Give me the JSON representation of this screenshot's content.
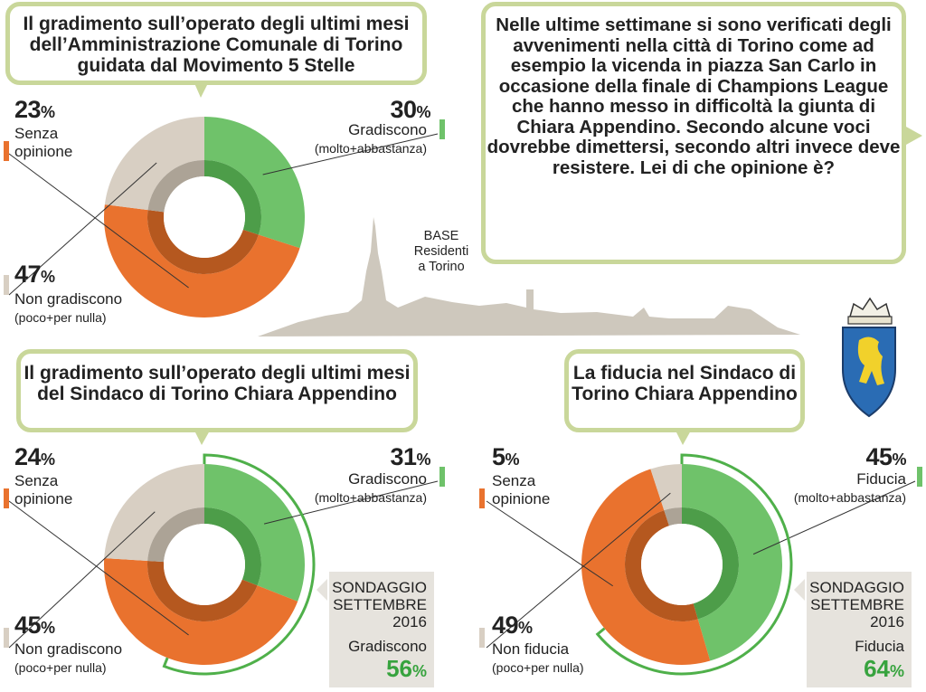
{
  "colors": {
    "green": "#6fc26a",
    "green_dark": "#4d9d49",
    "orange": "#e9722e",
    "orange_dark": "#b5581f",
    "beige": "#d8cfc3",
    "beige_dark": "#aca396",
    "frame": "#c9d79a",
    "accent_text": "#37a33e",
    "skyline": "#cec8bd"
  },
  "bubbles": {
    "administration": "Il gradimento sull’operato degli ultimi mesi dell’Amministrazione Comunale di Torino guidata dal Movimento 5 Stelle",
    "question": "Nelle ultime settimane si sono verificati degli avvenimenti nella città di Torino come ad esempio la vicenda in piazza San Carlo in occasione della finale di Champions League che hanno messo in difficoltà la giunta di Chiara Appendino. Secondo alcune voci dovrebbe dimettersi, secondo altri invece deve resistere. Lei di che opinione è?",
    "mayor_approval": "Il gradimento sull’operato degli ultimi mesi del Sindaco di Torino Chiara Appendino",
    "mayor_trust": "La fiducia nel Sindaco di Torino Chiara Appendino"
  },
  "base_note": {
    "l1": "BASE",
    "l2": "Residenti",
    "l3": "a Torino"
  },
  "emblem": "coat-of-arms-of-turin",
  "chart_data": [
    {
      "type": "pie",
      "title": "Il gradimento sull’operato degli ultimi mesi dell’Amministrazione Comunale di Torino guidata dal Movimento 5 Stelle",
      "slices": [
        {
          "label": "Gradiscono",
          "sublabel": "(molto+abbastanza)",
          "value": 30,
          "display": "30",
          "color": "#6fc26a"
        },
        {
          "label": "Non gradiscono",
          "sublabel": "(poco+per nulla)",
          "value": 47,
          "display": "47",
          "color": "#e9722e"
        },
        {
          "label": "Senza",
          "label2": "opinione",
          "value": 23,
          "display": "23",
          "color": "#d8cfc3"
        }
      ]
    },
    {
      "type": "pie",
      "title": "Il gradimento sull’operato degli ultimi mesi del Sindaco di Torino Chiara Appendino",
      "slices": [
        {
          "label": "Gradiscono",
          "sublabel": "(molto+abbastanza)",
          "value": 31,
          "display": "31",
          "color": "#6fc26a"
        },
        {
          "label": "Non gradiscono",
          "sublabel": "(poco+per nulla)",
          "value": 45,
          "display": "45",
          "color": "#e9722e"
        },
        {
          "label": "Senza",
          "label2": "opinione",
          "value": 24,
          "display": "24",
          "color": "#d8cfc3"
        }
      ],
      "comparison": {
        "l1": "SONDAGGIO",
        "l2": "SETTEMBRE",
        "l3": "2016",
        "label": "Gradiscono",
        "value": 56,
        "display": "56"
      }
    },
    {
      "type": "pie",
      "title": "La fiducia nel Sindaco di Torino Chiara Appendino",
      "slices": [
        {
          "label": "Fiducia",
          "sublabel": "(molto+abbastanza)",
          "value": 45,
          "display": "45",
          "color": "#6fc26a"
        },
        {
          "label": "Non fiducia",
          "sublabel": "(poco+per nulla)",
          "value": 49,
          "display": "49",
          "color": "#e9722e"
        },
        {
          "label": "Senza",
          "label2": "opinione",
          "value": 5,
          "display": "5",
          "color": "#d8cfc3"
        }
      ],
      "comparison": {
        "l1": "SONDAGGIO",
        "l2": "SETTEMBRE",
        "l3": "2016",
        "label": "Fiducia",
        "value": 64,
        "display": "64"
      }
    }
  ]
}
